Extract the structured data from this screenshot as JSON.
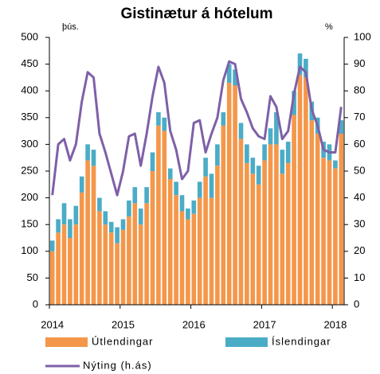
{
  "chart_data": {
    "type": "bar-line",
    "title": "Gistinætur á hótelum",
    "y_label": "þús.",
    "y2_label": "%",
    "categories": [
      "2014",
      null,
      null,
      null,
      null,
      null,
      null,
      null,
      null,
      null,
      null,
      null,
      "2015",
      null,
      null,
      null,
      null,
      null,
      null,
      null,
      null,
      null,
      null,
      null,
      "2016",
      null,
      null,
      null,
      null,
      null,
      null,
      null,
      null,
      null,
      null,
      null,
      "2017",
      null,
      null,
      null,
      null,
      null,
      null,
      null,
      null,
      null,
      null,
      null,
      "2018",
      null
    ],
    "ylim": [
      0,
      500
    ],
    "yticks": [
      0,
      50,
      100,
      150,
      200,
      250,
      300,
      350,
      400,
      450,
      500
    ],
    "y2lim": [
      0,
      100
    ],
    "y2ticks": [
      0,
      10,
      20,
      30,
      40,
      50,
      60,
      70,
      80,
      90,
      100
    ],
    "series": [
      {
        "name": "Útlendingar",
        "type": "bar",
        "color": "#f4974a",
        "values": [
          100,
          135,
          150,
          125,
          150,
          210,
          270,
          260,
          175,
          150,
          135,
          115,
          140,
          165,
          190,
          150,
          190,
          250,
          335,
          325,
          235,
          205,
          175,
          160,
          170,
          200,
          240,
          200,
          260,
          335,
          415,
          410,
          310,
          265,
          245,
          225,
          270,
          300,
          300,
          245,
          265,
          355,
          430,
          425,
          345,
          320,
          275,
          270,
          255,
          320
        ]
      },
      {
        "name": "Íslendingar",
        "type": "bar",
        "color": "#4bacc6",
        "values": [
          20,
          25,
          40,
          35,
          35,
          30,
          30,
          30,
          25,
          25,
          20,
          30,
          20,
          30,
          30,
          30,
          30,
          35,
          25,
          25,
          20,
          25,
          30,
          20,
          25,
          30,
          35,
          45,
          40,
          25,
          35,
          30,
          30,
          35,
          30,
          35,
          30,
          30,
          60,
          45,
          40,
          45,
          40,
          35,
          35,
          30,
          30,
          30,
          15,
          25
        ]
      },
      {
        "name": "Nýting (h.ás)",
        "type": "line",
        "axis": "y2",
        "color": "#7e60a8",
        "values": [
          41,
          60,
          62,
          54,
          60,
          76,
          87,
          85,
          64,
          57,
          49,
          41,
          50,
          63,
          64,
          52,
          64,
          78,
          89,
          83,
          65,
          58,
          47,
          50,
          68,
          69,
          57,
          64,
          70,
          84,
          91,
          90,
          77,
          72,
          66,
          63,
          62,
          78,
          74,
          62,
          65,
          79,
          89,
          87,
          73,
          67,
          58,
          57,
          57,
          74
        ]
      }
    ]
  }
}
